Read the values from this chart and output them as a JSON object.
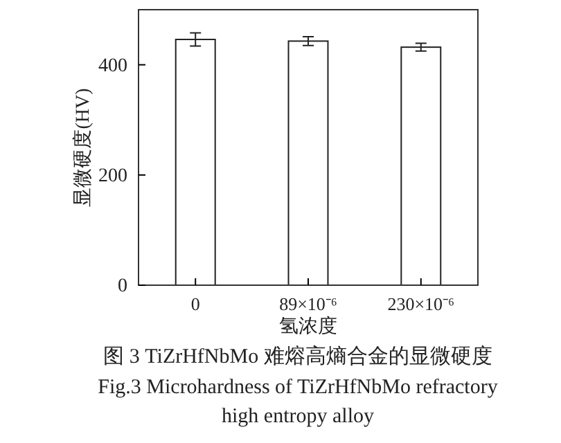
{
  "chart_data": {
    "type": "bar",
    "title": "图 3  TiZrHfNbMo 难熔高熵合金的显微硬度",
    "subtitle": "Fig.3  Microhardness of TiZrHfNbMo refractory high entropy alloy",
    "xlabel": "氢浓度",
    "ylabel": "显微硬度(HV)",
    "categories": [
      "0",
      "89×10⁻⁶",
      "230×10⁻⁶"
    ],
    "values": [
      446,
      443,
      432
    ],
    "errors": [
      12,
      8,
      7
    ],
    "color": "#ffffff",
    "ylim": [
      0,
      500
    ],
    "yticks": [
      0,
      200,
      400
    ],
    "grid": false
  }
}
